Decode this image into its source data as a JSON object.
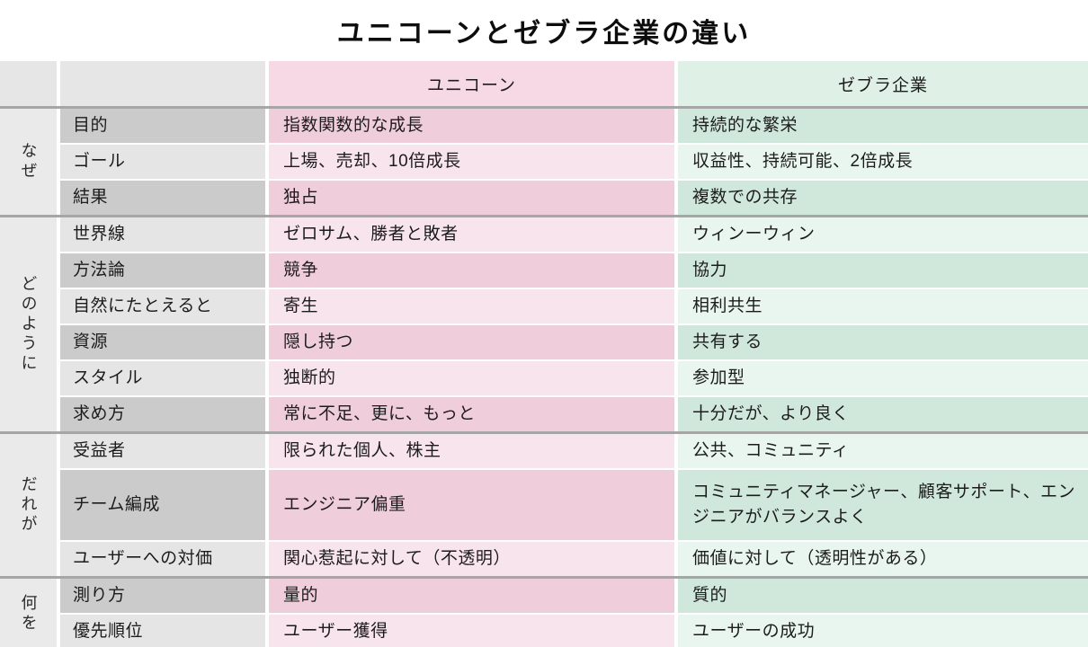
{
  "title": "ユニコーンとゼブラ企業の違い",
  "table": {
    "columns": {
      "unicorn": "ユニコーン",
      "zebra": "ゼブラ企業"
    },
    "groups": [
      {
        "label": "なぜ",
        "rows": [
          {
            "attribute": "目的",
            "unicorn": "指数関数的な成長",
            "zebra": "持続的な繁栄"
          },
          {
            "attribute": "ゴール",
            "unicorn": "上場、売却、10倍成長",
            "zebra": "収益性、持続可能、2倍成長"
          },
          {
            "attribute": "結果",
            "unicorn": "独占",
            "zebra": "複数での共存"
          }
        ]
      },
      {
        "label": "どのように",
        "rows": [
          {
            "attribute": "世界線",
            "unicorn": "ゼロサム、勝者と敗者",
            "zebra": "ウィンーウィン"
          },
          {
            "attribute": "方法論",
            "unicorn": "競争",
            "zebra": "協力"
          },
          {
            "attribute": "自然にたとえると",
            "unicorn": "寄生",
            "zebra": "相利共生"
          },
          {
            "attribute": "資源",
            "unicorn": "隠し持つ",
            "zebra": "共有する"
          },
          {
            "attribute": "スタイル",
            "unicorn": "独断的",
            "zebra": "参加型"
          },
          {
            "attribute": "求め方",
            "unicorn": "常に不足、更に、もっと",
            "zebra": "十分だが、より良く"
          }
        ]
      },
      {
        "label": "だれが",
        "rows": [
          {
            "attribute": "受益者",
            "unicorn": "限られた個人、株主",
            "zebra": "公共、コミュニティ"
          },
          {
            "attribute": "チーム編成",
            "unicorn": "エンジニア偏重",
            "zebra": "コミュニティマネージャー、顧客サポート、エンジニアがバランスよく",
            "tall": true
          },
          {
            "attribute": "ユーザーへの対価",
            "unicorn": "関心惹起に対して（不透明）",
            "zebra": "価値に対して（透明性がある）"
          }
        ]
      },
      {
        "label": "何を",
        "rows": [
          {
            "attribute": "測り方",
            "unicorn": "量的",
            "zebra": "質的"
          },
          {
            "attribute": "優先順位",
            "unicorn": "ユーザー獲得",
            "zebra": "ユーザーの成功"
          }
        ]
      }
    ]
  },
  "colors": {
    "unicorn_header": "#f6d9e5",
    "unicorn_row_dark": "#efcdda",
    "unicorn_row_light": "#f8e4ed",
    "zebra_header": "#dff0e7",
    "zebra_row_dark": "#d0e8dc",
    "zebra_row_light": "#e9f5ef",
    "label_dark": "#cbcbcb",
    "label_light": "#e5e5e5",
    "group_column": "#eaeaea",
    "group_divider": "#a6a6a6",
    "text": "#1c1c1c"
  }
}
